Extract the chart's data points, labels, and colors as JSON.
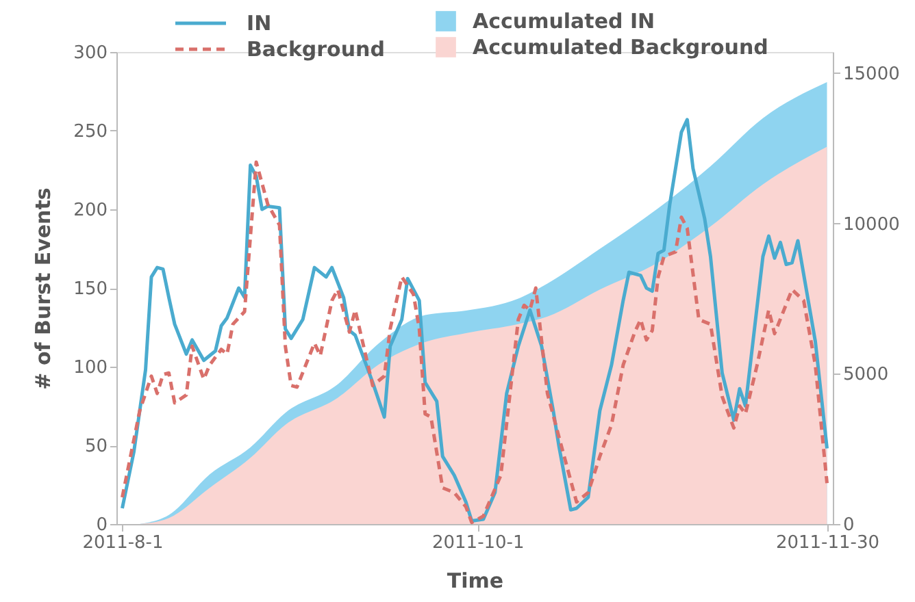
{
  "chart_data": {
    "type": "line",
    "xlabel": "Time",
    "ylabel": "# of Burst Events",
    "xlim": [
      "2011-07-31",
      "2011-12-01"
    ],
    "xticks": [
      {
        "value": "2011-08-01",
        "label": "2011-8-1"
      },
      {
        "value": "2011-10-01",
        "label": "2011-10-1"
      },
      {
        "value": "2011-11-30",
        "label": "2011-11-30"
      }
    ],
    "ylim": [
      0,
      300
    ],
    "yticks": [
      0,
      50,
      100,
      150,
      200,
      250,
      300
    ],
    "y2lim": [
      0,
      15700
    ],
    "y2ticks": [
      0,
      5000,
      10000,
      15000
    ],
    "legend": "top",
    "grid": false,
    "series": [
      {
        "name": "IN",
        "color": "#4aabcf",
        "line_style": "solid",
        "x": [
          "2011-08-01",
          "2011-08-03",
          "2011-08-05",
          "2011-08-06",
          "2011-08-07",
          "2011-08-08",
          "2011-08-09",
          "2011-08-10",
          "2011-08-12",
          "2011-08-13",
          "2011-08-15",
          "2011-08-17",
          "2011-08-18",
          "2011-08-19",
          "2011-08-21",
          "2011-08-22",
          "2011-08-23",
          "2011-08-24",
          "2011-08-25",
          "2011-08-26",
          "2011-08-28",
          "2011-08-29",
          "2011-08-30",
          "2011-09-01",
          "2011-09-03",
          "2011-09-05",
          "2011-09-06",
          "2011-09-08",
          "2011-09-09",
          "2011-09-10",
          "2011-09-13",
          "2011-09-15",
          "2011-09-16",
          "2011-09-18",
          "2011-09-19",
          "2011-09-21",
          "2011-09-22",
          "2011-09-24",
          "2011-09-25",
          "2011-09-27",
          "2011-09-29",
          "2011-09-30",
          "2011-10-02",
          "2011-10-04",
          "2011-10-06",
          "2011-10-08",
          "2011-10-10",
          "2011-10-12",
          "2011-10-14",
          "2011-10-15",
          "2011-10-17",
          "2011-10-18",
          "2011-10-20",
          "2011-10-22",
          "2011-10-24",
          "2011-10-26",
          "2011-10-27",
          "2011-10-29",
          "2011-10-30",
          "2011-10-31",
          "2011-11-01",
          "2011-11-02",
          "2011-11-03",
          "2011-11-05",
          "2011-11-06",
          "2011-11-07",
          "2011-11-09",
          "2011-11-10",
          "2011-11-12",
          "2011-11-14",
          "2011-11-15",
          "2011-11-16",
          "2011-11-19",
          "2011-11-20",
          "2011-11-21",
          "2011-11-22",
          "2011-11-23",
          "2011-11-24",
          "2011-11-25",
          "2011-11-28",
          "2011-11-30"
        ],
        "values": [
          10,
          46,
          98,
          157,
          163,
          162,
          144,
          127,
          108,
          117,
          104,
          110,
          126,
          131,
          150,
          144,
          228,
          221,
          200,
          202,
          201,
          124,
          118,
          130,
          163,
          157,
          163,
          144,
          123,
          120,
          90,
          68,
          113,
          130,
          156,
          142,
          90,
          78,
          43,
          31,
          14,
          2,
          3,
          20,
          83,
          113,
          136,
          113,
          72,
          49,
          9,
          10,
          17,
          72,
          101,
          142,
          160,
          158,
          150,
          148,
          172,
          174,
          203,
          249,
          257,
          226,
          194,
          170,
          96,
          66,
          86,
          75,
          170,
          183,
          169,
          179,
          165,
          166,
          180,
          116,
          48
        ]
      },
      {
        "name": "Background",
        "color": "#d9706b",
        "line_style": "dashed",
        "x": [
          "2011-08-01",
          "2011-08-04",
          "2011-08-06",
          "2011-08-07",
          "2011-08-08",
          "2011-08-09",
          "2011-08-10",
          "2011-08-12",
          "2011-08-13",
          "2011-08-15",
          "2011-08-16",
          "2011-08-18",
          "2011-08-19",
          "2011-08-20",
          "2011-08-22",
          "2011-08-24",
          "2011-08-26",
          "2011-08-28",
          "2011-08-29",
          "2011-08-30",
          "2011-08-31",
          "2011-09-03",
          "2011-09-04",
          "2011-09-06",
          "2011-09-07",
          "2011-09-09",
          "2011-09-10",
          "2011-09-13",
          "2011-09-15",
          "2011-09-16",
          "2011-09-18",
          "2011-09-20",
          "2011-09-21",
          "2011-09-22",
          "2011-09-23",
          "2011-09-25",
          "2011-09-27",
          "2011-09-29",
          "2011-09-30",
          "2011-10-02",
          "2011-10-05",
          "2011-10-08",
          "2011-10-09",
          "2011-10-10",
          "2011-10-11",
          "2011-10-13",
          "2011-10-15",
          "2011-10-18",
          "2011-10-20",
          "2011-10-22",
          "2011-10-24",
          "2011-10-26",
          "2011-10-28",
          "2011-10-29",
          "2011-10-30",
          "2011-10-31",
          "2011-11-01",
          "2011-11-02",
          "2011-11-04",
          "2011-11-05",
          "2011-11-06",
          "2011-11-07",
          "2011-11-08",
          "2011-11-10",
          "2011-11-12",
          "2011-11-14",
          "2011-11-15",
          "2011-11-16",
          "2011-11-18",
          "2011-11-20",
          "2011-11-21",
          "2011-11-24",
          "2011-11-26",
          "2011-11-28",
          "2011-11-30"
        ],
        "values": [
          17,
          72,
          94,
          83,
          95,
          96,
          77,
          82,
          113,
          92,
          101,
          111,
          108,
          127,
          135,
          230,
          203,
          190,
          113,
          88,
          87,
          115,
          107,
          142,
          149,
          122,
          136,
          88,
          94,
          124,
          157,
          146,
          124,
          70,
          68,
          23,
          20,
          11,
          1,
          5,
          31,
          130,
          139,
          136,
          150,
          83,
          55,
          14,
          20,
          43,
          63,
          101,
          122,
          130,
          117,
          123,
          157,
          170,
          173,
          195,
          188,
          159,
          130,
          127,
          81,
          61,
          75,
          70,
          101,
          136,
          121,
          149,
          142,
          101,
          26
        ]
      },
      {
        "name": "Accumulated IN",
        "type": "area",
        "axis": "y2",
        "color": "#8fd4f0",
        "x": [
          "2011-08-04",
          "2011-08-09",
          "2011-08-16",
          "2011-08-23",
          "2011-08-29",
          "2011-09-07",
          "2011-09-14",
          "2011-09-22",
          "2011-09-29",
          "2011-10-08",
          "2011-10-13",
          "2011-10-22",
          "2011-11-01",
          "2011-11-10",
          "2011-11-19",
          "2011-11-30"
        ],
        "values": [
          0,
          300,
          1650,
          2550,
          3700,
          4650,
          6000,
          6950,
          7100,
          7500,
          8000,
          9150,
          10500,
          11900,
          13500,
          14700
        ]
      },
      {
        "name": "Accumulated Background",
        "type": "area",
        "axis": "y2",
        "color": "#fad5d2",
        "x": [
          "2011-08-04",
          "2011-08-09",
          "2011-08-16",
          "2011-08-23",
          "2011-08-29",
          "2011-09-07",
          "2011-09-14",
          "2011-09-22",
          "2011-09-29",
          "2011-10-08",
          "2011-10-13",
          "2011-10-22",
          "2011-11-01",
          "2011-11-10",
          "2011-11-19",
          "2011-11-30"
        ],
        "values": [
          0,
          200,
          1200,
          2200,
          3300,
          4200,
          5300,
          6050,
          6350,
          6650,
          6900,
          7800,
          8700,
          9900,
          11300,
          12550
        ]
      }
    ]
  }
}
